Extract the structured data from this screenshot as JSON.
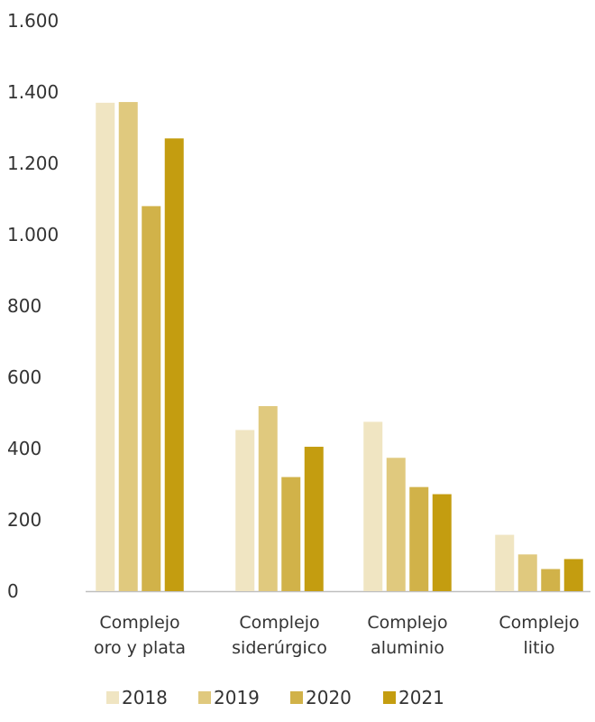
{
  "chart_data": {
    "type": "bar",
    "title": "",
    "xlabel": "",
    "ylabel": "",
    "ylim": [
      0,
      1600
    ],
    "yticks": [
      0,
      200,
      400,
      600,
      800,
      1000,
      1200,
      1400,
      1600
    ],
    "ytick_labels": [
      "0",
      "200",
      "400",
      "600",
      "800",
      "1.000",
      "1.200",
      "1.400",
      "1.600"
    ],
    "grid": false,
    "legend_position": "bottom",
    "categories": [
      [
        "Complejo",
        "oro y plata"
      ],
      [
        "Complejo",
        "siderúrgico"
      ],
      [
        "Complejo",
        "aluminio"
      ],
      [
        "Complejo",
        "litio"
      ]
    ],
    "series": [
      {
        "name": "2018",
        "color": "#f0e5c2",
        "values": [
          1370,
          452,
          475,
          158
        ]
      },
      {
        "name": "2019",
        "color": "#e0c97e",
        "values": [
          1372,
          519,
          374,
          103
        ]
      },
      {
        "name": "2020",
        "color": "#d1b249",
        "values": [
          1080,
          320,
          292,
          62
        ]
      },
      {
        "name": "2021",
        "color": "#c49d10",
        "values": [
          1270,
          405,
          272,
          90
        ]
      }
    ]
  }
}
